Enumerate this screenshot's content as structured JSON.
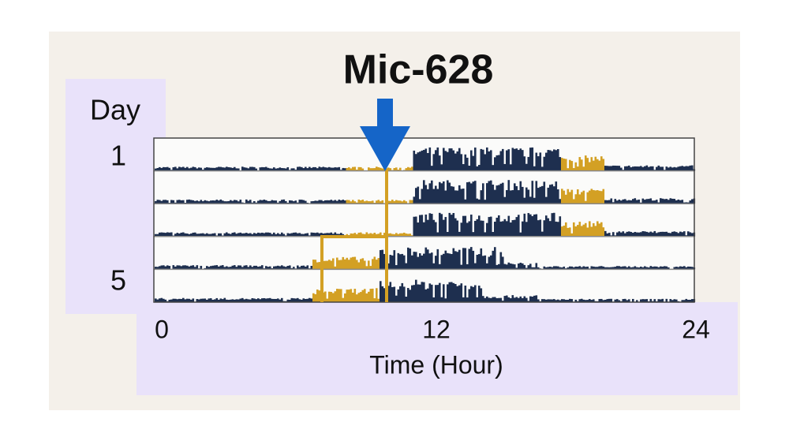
{
  "title": "Mic-628",
  "y_axis": {
    "label": "Day",
    "ticks": [
      "1",
      "5"
    ]
  },
  "x_axis": {
    "label": "Time (Hour)",
    "ticks": [
      "0",
      "12",
      "24"
    ]
  }
}
